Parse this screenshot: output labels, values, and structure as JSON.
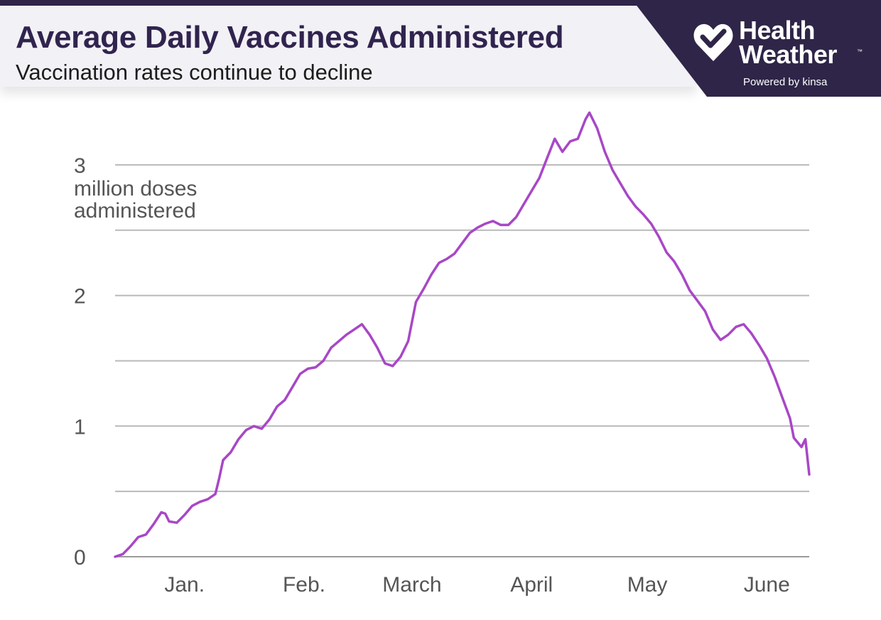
{
  "header": {
    "title": "Average Daily Vaccines Administered",
    "subtitle": "Vaccination rates continue to decline"
  },
  "brand": {
    "line1": "Health",
    "line2": "Weather",
    "trademark": "™",
    "tagline": "Powered by kinsa",
    "logo_icon": "heart-check-icon"
  },
  "colors": {
    "brand_dark": "#2f2548",
    "title_text": "#30244f",
    "banner_bg": "#f2f1f5",
    "line": "#a847c6",
    "grid": "#b9b9b9",
    "axis_text": "#555555"
  },
  "chart_data": {
    "type": "line",
    "title": "Average Daily Vaccines Administered",
    "subtitle": "Vaccination rates continue to decline",
    "ylabel": "million doses administered",
    "xlabel": "",
    "ylim": [
      0,
      3.3
    ],
    "yticks": [
      0,
      1,
      2,
      3
    ],
    "ytick_labels": [
      "0",
      "1",
      "2",
      "3"
    ],
    "ygrid": [
      0.5,
      1,
      1.5,
      2,
      2.5,
      3
    ],
    "grid": true,
    "xlim": [
      "2020-12-14",
      "2021-06-12"
    ],
    "xticks": [
      {
        "date": "2021-01-01",
        "label": "Jan."
      },
      {
        "date": "2021-02-01",
        "label": "Feb."
      },
      {
        "date": "2021-03-01",
        "label": "March"
      },
      {
        "date": "2021-04-01",
        "label": "April"
      },
      {
        "date": "2021-05-01",
        "label": "May"
      },
      {
        "date": "2021-06-01",
        "label": "June"
      }
    ],
    "series": [
      {
        "name": "",
        "points": [
          [
            "2020-12-14",
            0.0
          ],
          [
            "2020-12-16",
            0.02
          ],
          [
            "2020-12-18",
            0.08
          ],
          [
            "2020-12-20",
            0.15
          ],
          [
            "2020-12-22",
            0.17
          ],
          [
            "2020-12-24",
            0.25
          ],
          [
            "2020-12-26",
            0.34
          ],
          [
            "2020-12-27",
            0.33
          ],
          [
            "2020-12-28",
            0.27
          ],
          [
            "2020-12-30",
            0.26
          ],
          [
            "2021-01-01",
            0.32
          ],
          [
            "2021-01-03",
            0.39
          ],
          [
            "2021-01-05",
            0.42
          ],
          [
            "2021-01-07",
            0.44
          ],
          [
            "2021-01-09",
            0.48
          ],
          [
            "2021-01-10",
            0.6
          ],
          [
            "2021-01-11",
            0.74
          ],
          [
            "2021-01-13",
            0.8
          ],
          [
            "2021-01-15",
            0.9
          ],
          [
            "2021-01-17",
            0.97
          ],
          [
            "2021-01-19",
            1.0
          ],
          [
            "2021-01-21",
            0.98
          ],
          [
            "2021-01-23",
            1.05
          ],
          [
            "2021-01-25",
            1.15
          ],
          [
            "2021-01-27",
            1.2
          ],
          [
            "2021-01-29",
            1.3
          ],
          [
            "2021-01-31",
            1.4
          ],
          [
            "2021-02-02",
            1.44
          ],
          [
            "2021-02-04",
            1.45
          ],
          [
            "2021-02-06",
            1.5
          ],
          [
            "2021-02-08",
            1.6
          ],
          [
            "2021-02-10",
            1.65
          ],
          [
            "2021-02-12",
            1.7
          ],
          [
            "2021-02-14",
            1.74
          ],
          [
            "2021-02-16",
            1.78
          ],
          [
            "2021-02-18",
            1.7
          ],
          [
            "2021-02-20",
            1.6
          ],
          [
            "2021-02-22",
            1.48
          ],
          [
            "2021-02-24",
            1.46
          ],
          [
            "2021-02-26",
            1.53
          ],
          [
            "2021-02-28",
            1.65
          ],
          [
            "2021-03-02",
            1.95
          ],
          [
            "2021-03-04",
            2.05
          ],
          [
            "2021-03-06",
            2.16
          ],
          [
            "2021-03-08",
            2.25
          ],
          [
            "2021-03-10",
            2.28
          ],
          [
            "2021-03-12",
            2.32
          ],
          [
            "2021-03-14",
            2.4
          ],
          [
            "2021-03-16",
            2.48
          ],
          [
            "2021-03-18",
            2.52
          ],
          [
            "2021-03-20",
            2.55
          ],
          [
            "2021-03-22",
            2.57
          ],
          [
            "2021-03-24",
            2.54
          ],
          [
            "2021-03-26",
            2.54
          ],
          [
            "2021-03-28",
            2.6
          ],
          [
            "2021-03-30",
            2.7
          ],
          [
            "2021-04-01",
            2.8
          ],
          [
            "2021-04-03",
            2.9
          ],
          [
            "2021-04-05",
            3.05
          ],
          [
            "2021-04-07",
            3.2
          ],
          [
            "2021-04-09",
            3.1
          ],
          [
            "2021-04-11",
            3.18
          ],
          [
            "2021-04-13",
            3.2
          ],
          [
            "2021-04-15",
            3.35
          ],
          [
            "2021-04-16",
            3.4
          ],
          [
            "2021-04-18",
            3.28
          ],
          [
            "2021-04-20",
            3.1
          ],
          [
            "2021-04-22",
            2.96
          ],
          [
            "2021-04-24",
            2.86
          ],
          [
            "2021-04-26",
            2.76
          ],
          [
            "2021-04-28",
            2.68
          ],
          [
            "2021-04-30",
            2.62
          ],
          [
            "2021-05-02",
            2.55
          ],
          [
            "2021-05-04",
            2.45
          ],
          [
            "2021-05-06",
            2.33
          ],
          [
            "2021-05-08",
            2.26
          ],
          [
            "2021-05-10",
            2.16
          ],
          [
            "2021-05-12",
            2.04
          ],
          [
            "2021-05-14",
            1.96
          ],
          [
            "2021-05-16",
            1.88
          ],
          [
            "2021-05-18",
            1.74
          ],
          [
            "2021-05-20",
            1.66
          ],
          [
            "2021-05-22",
            1.7
          ],
          [
            "2021-05-24",
            1.76
          ],
          [
            "2021-05-26",
            1.78
          ],
          [
            "2021-05-28",
            1.71
          ],
          [
            "2021-05-30",
            1.62
          ],
          [
            "2021-06-01",
            1.52
          ],
          [
            "2021-06-03",
            1.38
          ],
          [
            "2021-06-05",
            1.22
          ],
          [
            "2021-06-07",
            1.06
          ],
          [
            "2021-06-08",
            0.91
          ],
          [
            "2021-06-10",
            0.84
          ],
          [
            "2021-06-11",
            0.9
          ],
          [
            "2021-06-12",
            0.63
          ]
        ]
      }
    ]
  }
}
